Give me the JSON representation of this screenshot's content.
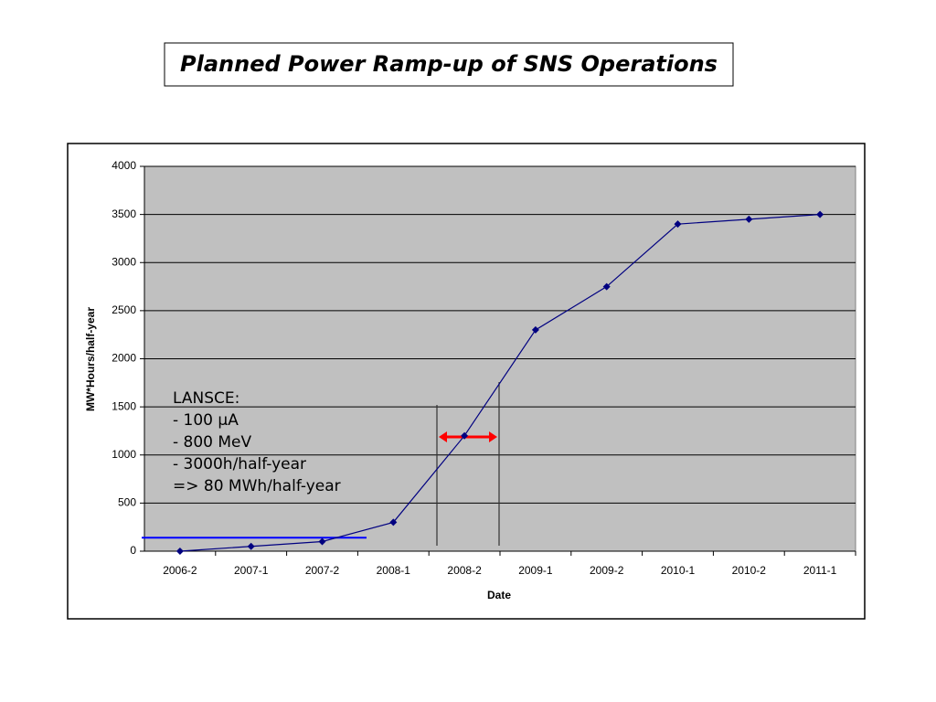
{
  "chart_data": {
    "type": "line",
    "title": "Planned Power Ramp-up of SNS Operations",
    "x_label": "Date",
    "y_label": "MW*Hours/half-year",
    "categories": [
      "2006-2",
      "2007-1",
      "2007-2",
      "2008-1",
      "2008-2",
      "2009-1",
      "2009-2",
      "2010-1",
      "2010-2",
      "2011-1"
    ],
    "series": [
      {
        "color": "#000080",
        "values": [
          0,
          50,
          100,
          300,
          1200,
          2300,
          2750,
          3400,
          3450,
          3500
        ]
      }
    ],
    "ylim": [
      0,
      4000
    ],
    "yticks": [
      0,
      500,
      1000,
      1500,
      2000,
      2500,
      3000,
      3500,
      4000
    ],
    "grid": true,
    "reference_line": {
      "value": 140,
      "color": "#0000ff"
    },
    "annotation": [
      "LANSCE:",
      "- 100 μA",
      "- 800 MeV",
      "- 3000h/half-year",
      "=> 80 MWh/half-year"
    ]
  }
}
